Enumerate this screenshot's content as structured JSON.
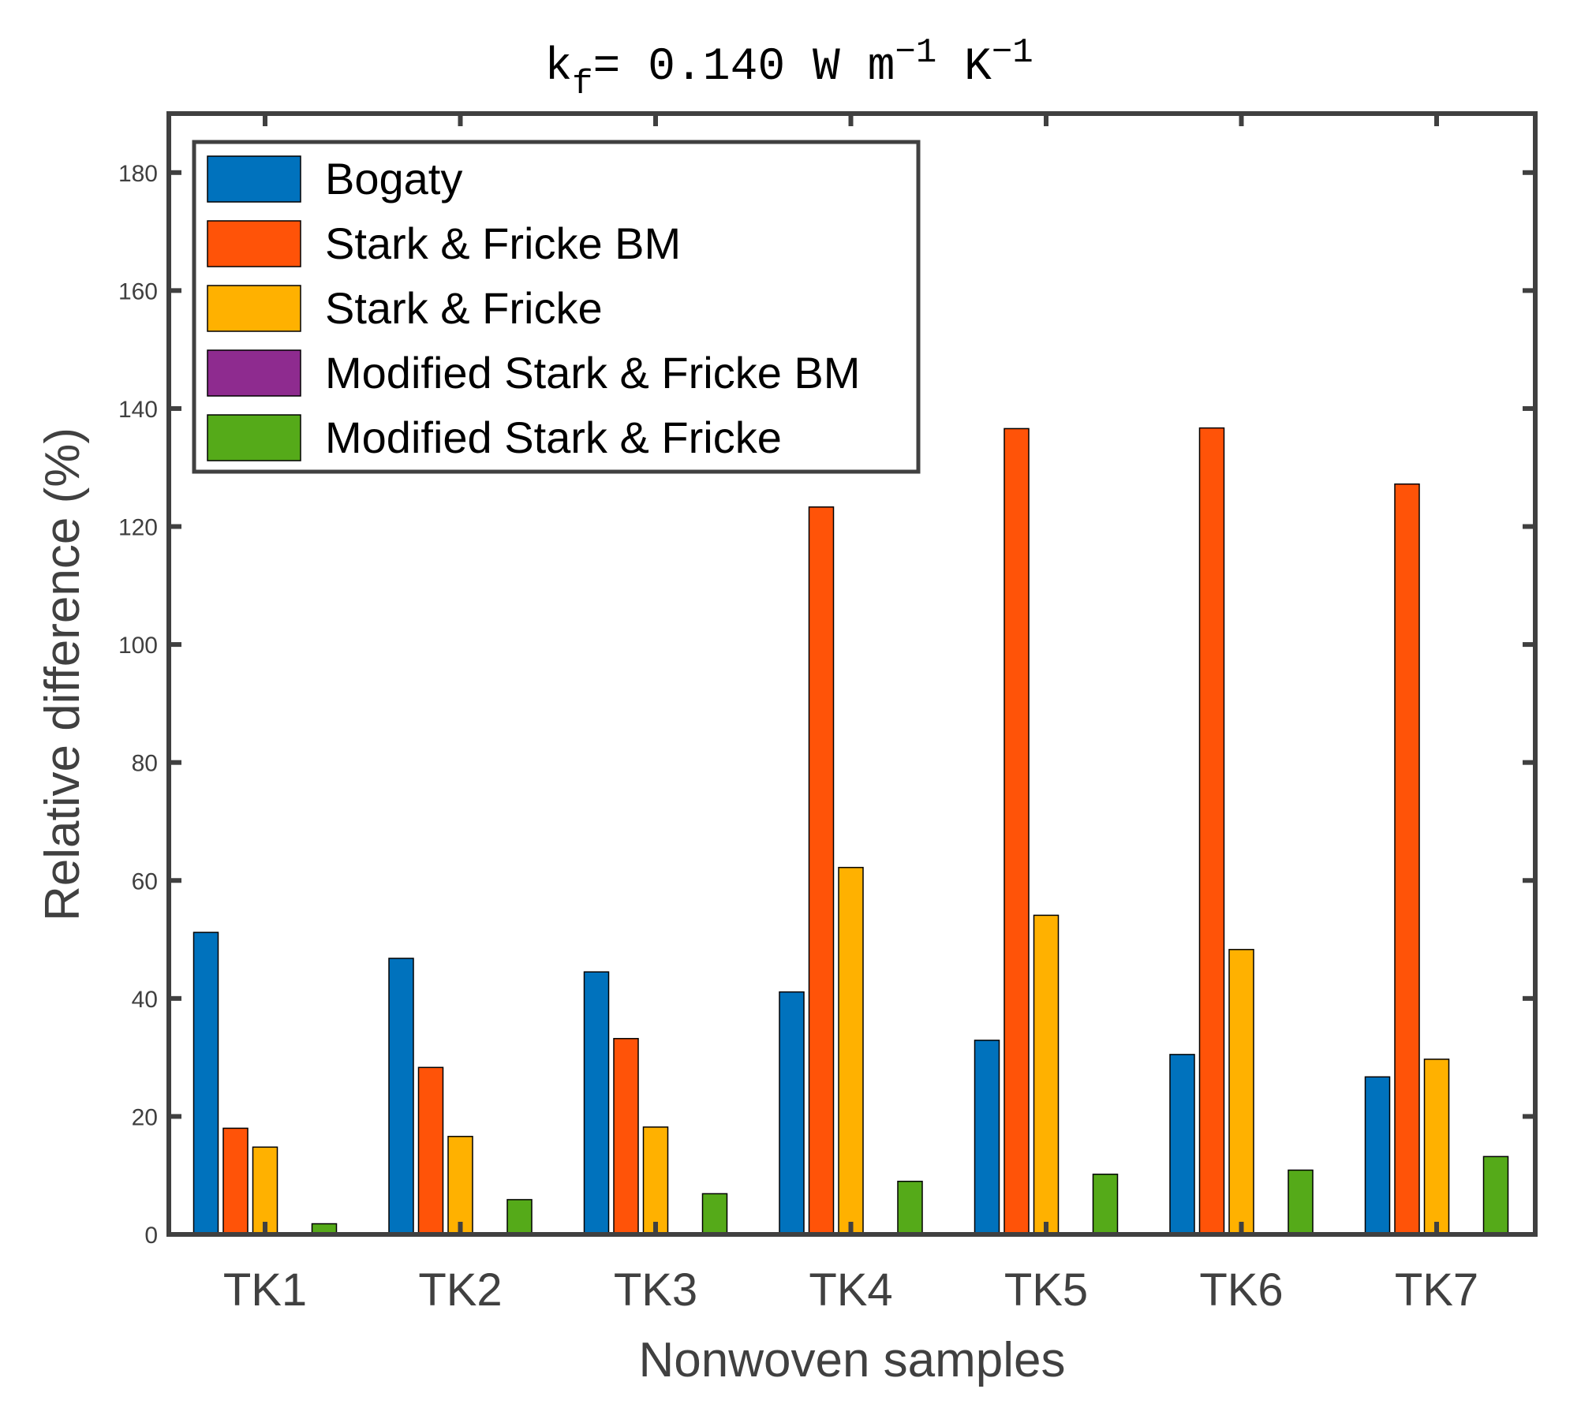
{
  "chart_data": {
    "type": "bar",
    "title_parts": {
      "k": "k",
      "sub": "f",
      "main": "= 0.140 W  m",
      "exp1": "−1",
      "unit2": " K",
      "exp2": "−1"
    },
    "xlabel": "Nonwoven samples",
    "ylabel": "Relative difference (%)",
    "ylim": [
      0,
      190
    ],
    "yticks": [
      0,
      20,
      40,
      60,
      80,
      100,
      120,
      140,
      160,
      180
    ],
    "categories": [
      "TK1",
      "TK2",
      "TK3",
      "TK4",
      "TK5",
      "TK6",
      "TK7"
    ],
    "series": [
      {
        "name": "Bogaty",
        "color": "#0072BD",
        "values": [
          51.2,
          46.8,
          44.5,
          41.1,
          32.9,
          30.5,
          26.7
        ]
      },
      {
        "name": "Stark & Fricke BM",
        "color": "#FF5308",
        "values": [
          18.0,
          28.3,
          33.2,
          123.3,
          136.6,
          136.7,
          127.2
        ]
      },
      {
        "name": "Stark & Fricke",
        "color": "#FFB100",
        "values": [
          14.8,
          16.6,
          18.2,
          62.2,
          54.1,
          48.3,
          29.7
        ]
      },
      {
        "name": "Modified Stark & Fricke BM",
        "color": "#8E2B8F",
        "values": [
          0.3,
          0.3,
          0.3,
          0.3,
          0.3,
          0.3,
          0.3
        ]
      },
      {
        "name": "Modified Stark & Fricke",
        "color": "#55AA19",
        "values": [
          1.8,
          5.9,
          6.9,
          9.0,
          10.2,
          10.9,
          13.2
        ]
      }
    ],
    "legend_position": "top-left",
    "grid": false
  }
}
